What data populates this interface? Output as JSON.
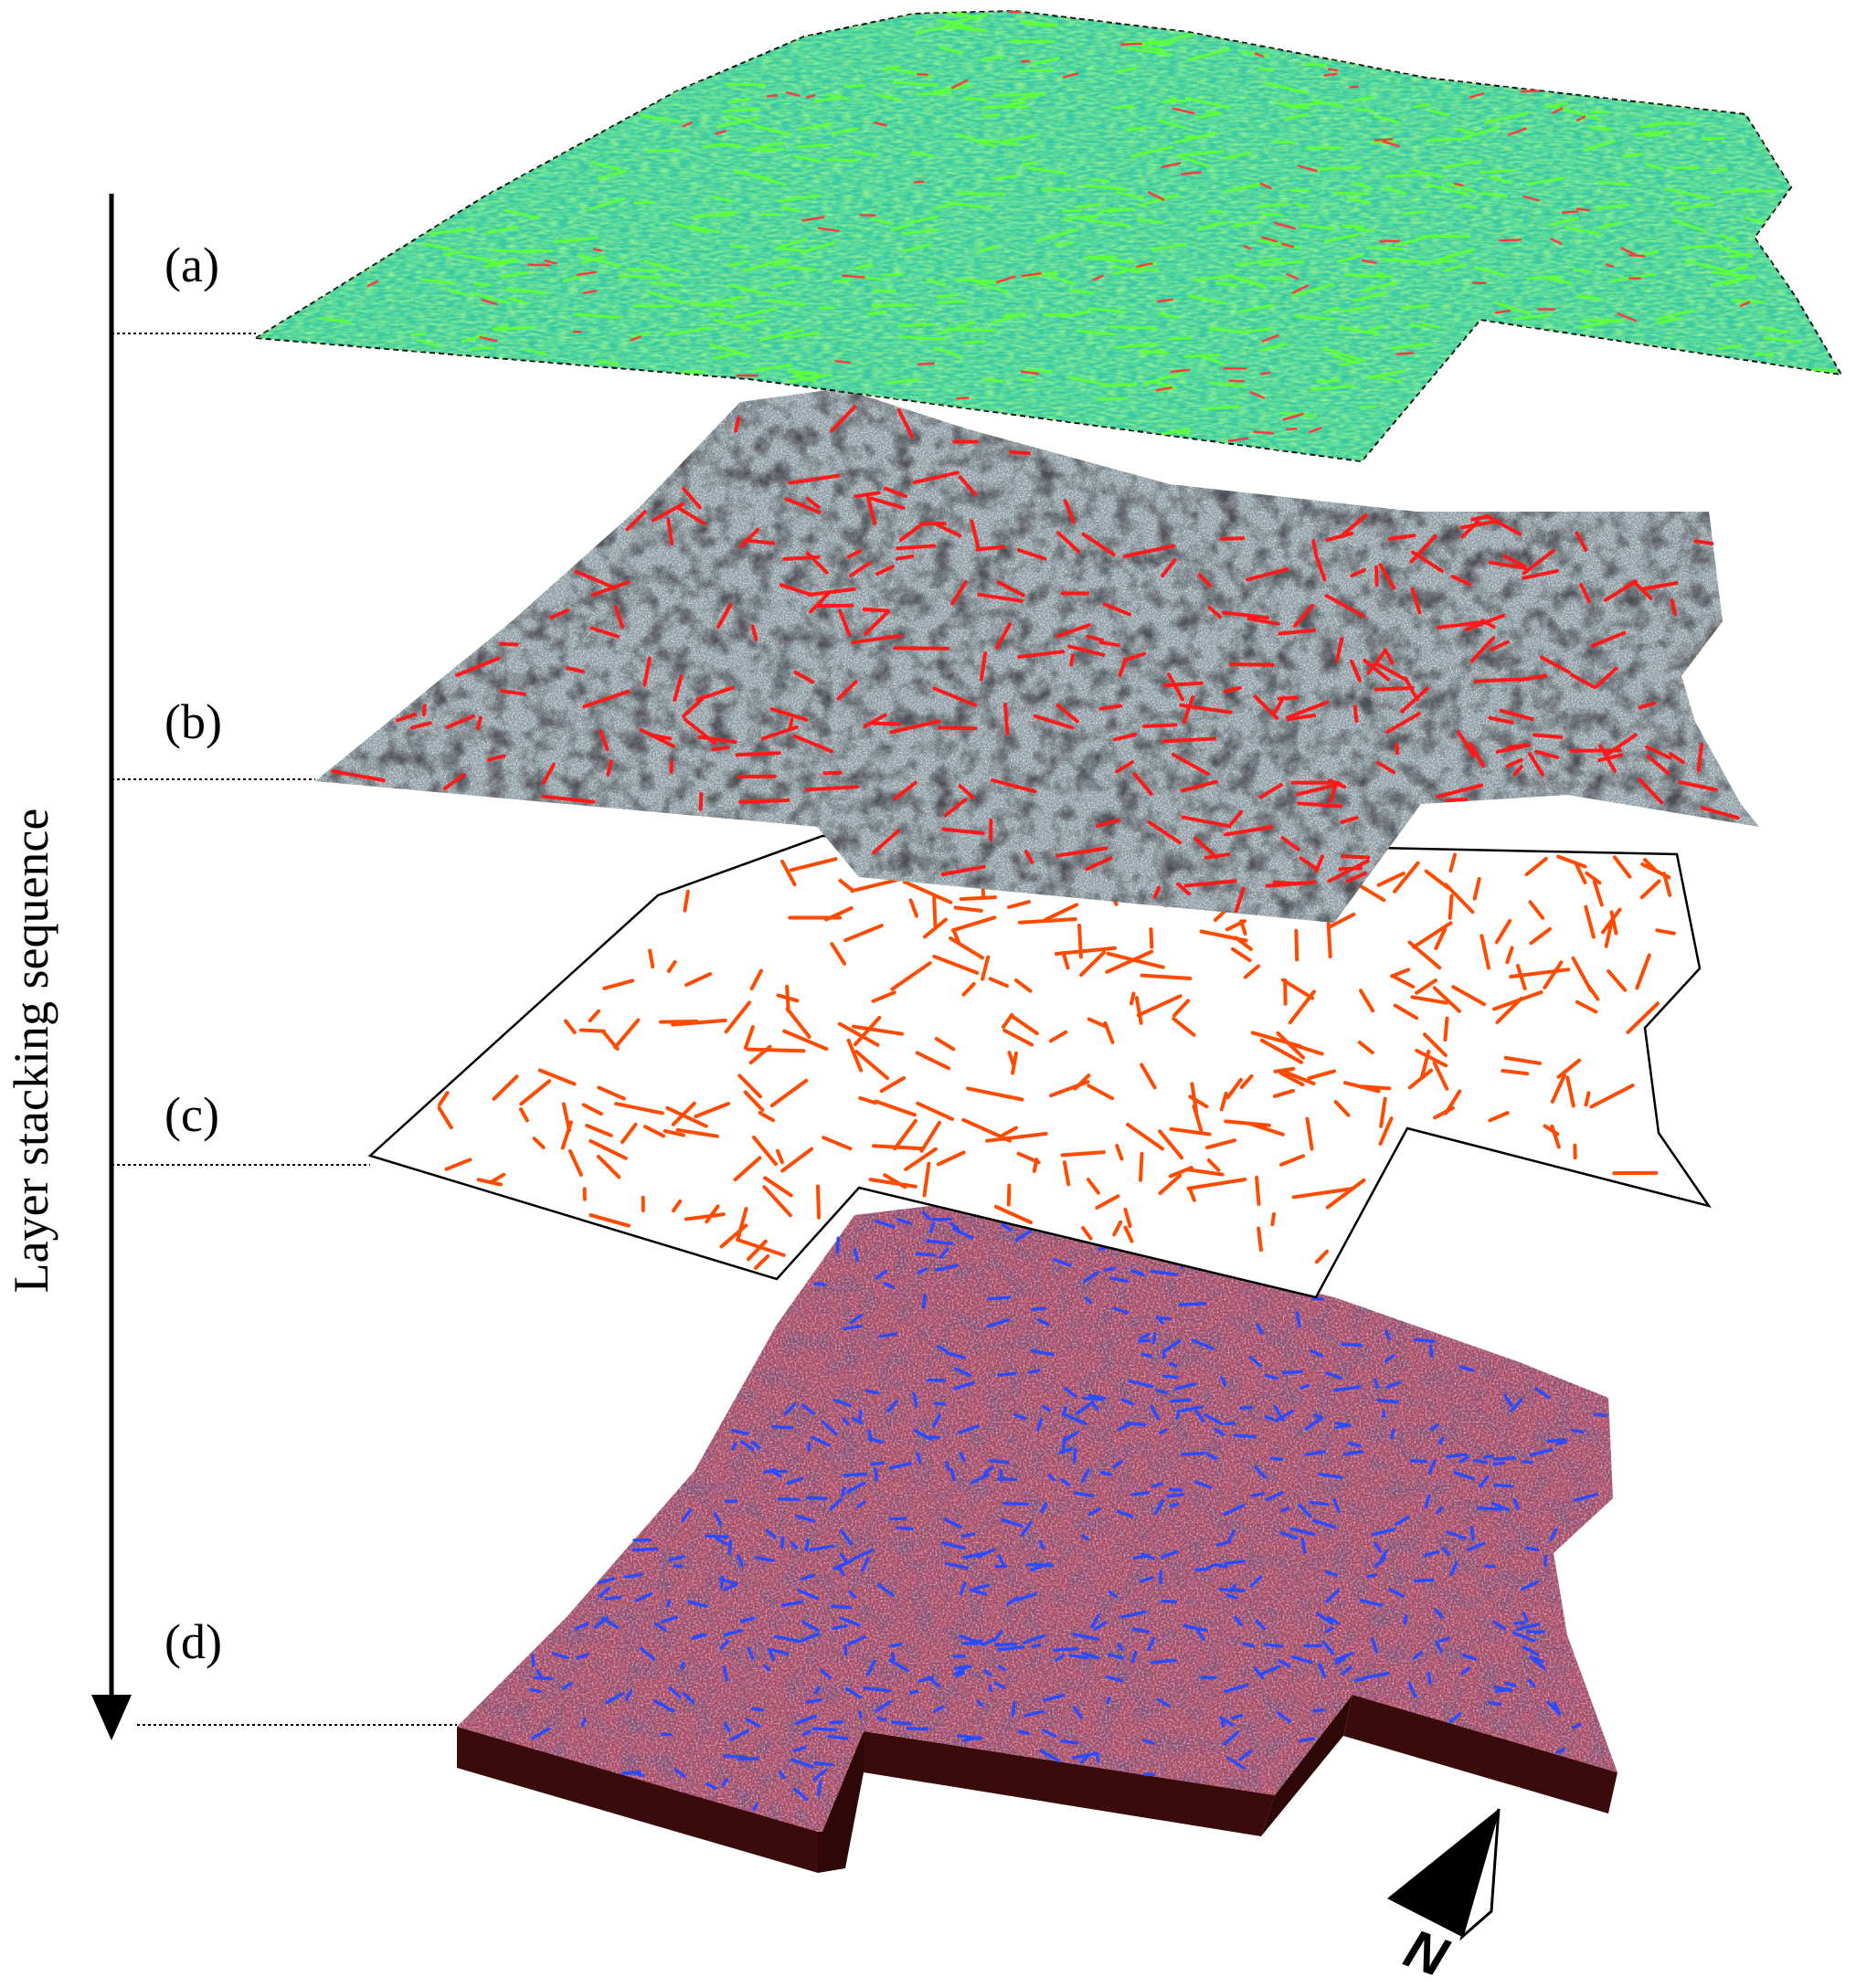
{
  "figure": {
    "sequence_label": "Layer stacking sequence",
    "layers": [
      {
        "id": "a",
        "label": "(a)",
        "fill": "#2fd48a",
        "accent": "#5cff3a",
        "line_color": "#ff3b3b"
      },
      {
        "id": "b",
        "label": "(b)",
        "fill": "#8a9aa0",
        "accent": "#1c1c1c",
        "line_color": "#ff1a1a"
      },
      {
        "id": "c",
        "label": "(c)",
        "fill": "#ffffff",
        "accent": "#000000",
        "line_color": "#ff4a00"
      },
      {
        "id": "d",
        "label": "(d)",
        "fill": "#a04a63",
        "accent": "#3a2030",
        "line_color": "#2a4bff"
      }
    ],
    "north_arrow": {
      "label": "N",
      "icon": "north-arrow-icon"
    }
  }
}
